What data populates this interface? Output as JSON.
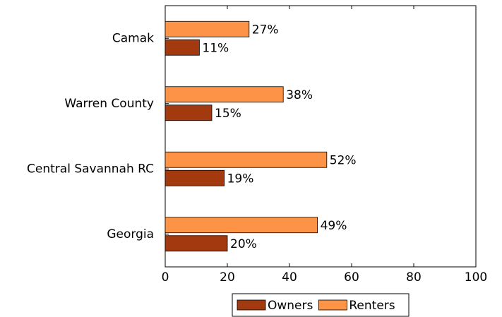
{
  "chart_data": {
    "type": "bar",
    "orientation": "horizontal",
    "categories": [
      "Camak",
      "Warren County",
      "Central Savannah RC",
      "Georgia"
    ],
    "series": [
      {
        "name": "Owners",
        "color": "#a33a0f",
        "values": [
          11,
          15,
          19,
          20
        ],
        "value_labels": [
          "11%",
          "15%",
          "19%",
          "20%"
        ]
      },
      {
        "name": "Renters",
        "color": "#fd9347",
        "values": [
          27,
          38,
          52,
          49
        ],
        "value_labels": [
          "27%",
          "38%",
          "52%",
          "49%"
        ]
      }
    ],
    "xlim": [
      0,
      100
    ],
    "xticks": [
      0,
      20,
      40,
      60,
      80,
      100
    ],
    "legend": "bottom"
  }
}
